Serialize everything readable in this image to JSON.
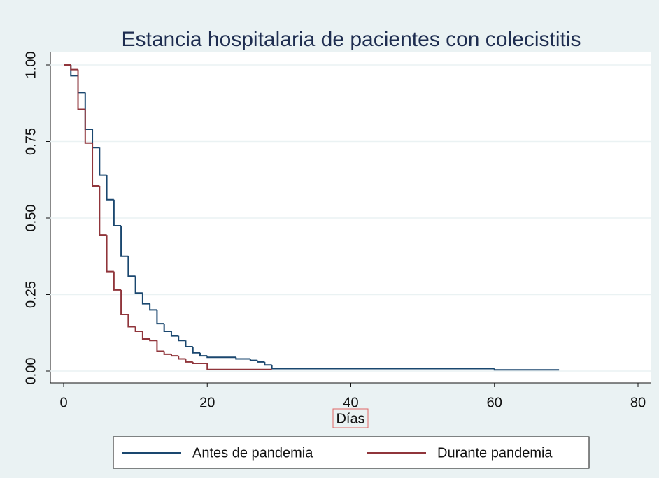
{
  "chart_data": {
    "type": "step",
    "title": "Estancia hospitalaria de pacientes con colecistitis",
    "x_label": "Días",
    "xlim": [
      0,
      80
    ],
    "xticks": [
      0,
      20,
      40,
      60,
      80
    ],
    "ylim": [
      0,
      1
    ],
    "yticks": [
      {
        "value": 0,
        "label": "0.00"
      },
      0.25,
      {
        "value": 0.5,
        "label": "0.50"
      },
      0.75,
      {
        "value": 1,
        "label": "1.00"
      }
    ],
    "grid": true,
    "legend": "bottom",
    "series": [
      {
        "name": "Antes de pandemia",
        "color": "#1a476f",
        "x": [
          0,
          1,
          2,
          3,
          4,
          5,
          6,
          7,
          8,
          9,
          10,
          11,
          12,
          13,
          14,
          15,
          16,
          17,
          18,
          19,
          20,
          24,
          26,
          27,
          28,
          29,
          60,
          69
        ],
        "values": [
          1,
          0.965,
          0.91,
          0.79,
          0.73,
          0.64,
          0.56,
          0.475,
          0.375,
          0.31,
          0.255,
          0.22,
          0.2,
          0.155,
          0.13,
          0.115,
          0.1,
          0.08,
          0.06,
          0.05,
          0.045,
          0.04,
          0.035,
          0.03,
          0.02,
          0.008,
          0.004,
          0.004
        ]
      },
      {
        "name": "Durante pandemia",
        "color": "#90353b",
        "x": [
          0,
          1,
          2,
          3,
          4,
          5,
          6,
          7,
          8,
          9,
          10,
          11,
          12,
          13,
          14,
          15,
          16,
          17,
          18,
          20,
          29
        ],
        "values": [
          1,
          0.985,
          0.855,
          0.745,
          0.605,
          0.445,
          0.325,
          0.265,
          0.185,
          0.145,
          0.13,
          0.105,
          0.1,
          0.065,
          0.055,
          0.05,
          0.04,
          0.03,
          0.025,
          0.005,
          0.005
        ]
      }
    ]
  }
}
